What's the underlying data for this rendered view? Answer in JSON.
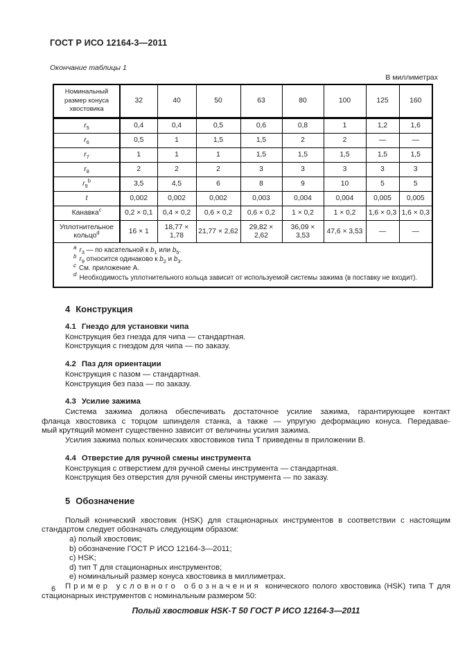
{
  "colors": {
    "text": "#1a1a1a",
    "table_border": "#000000",
    "page_bg": "#ffffff"
  },
  "header": {
    "doc_code": "ГОСТ Р ИСО 12164-3—2011",
    "table_caption": "Окончание таблицы 1",
    "units_note": "В миллиметрах"
  },
  "table": {
    "corner_label": "Номинальный размер конуса хвостовика",
    "size_columns": [
      "32",
      "40",
      "50",
      "63",
      "80",
      "100",
      "125",
      "160"
    ],
    "rows": [
      {
        "label": [
          {
            "t": "r",
            "i": true
          },
          {
            "t": "5",
            "sub": true
          }
        ],
        "values": [
          "0,4",
          "0,4",
          "0,5",
          "0,6",
          "0,8",
          "1",
          "1,2",
          "1,6"
        ]
      },
      {
        "label": [
          {
            "t": "r",
            "i": true
          },
          {
            "t": "6",
            "sub": true
          }
        ],
        "values": [
          "0,5",
          "1",
          "1,5",
          "1,5",
          "2",
          "2",
          "—",
          "—"
        ]
      },
      {
        "label": [
          {
            "t": "r",
            "i": true
          },
          {
            "t": "7",
            "sub": true
          }
        ],
        "values": [
          "1",
          "1",
          "1",
          "1,5",
          "1,5",
          "1,5",
          "1,5",
          "1,5"
        ]
      },
      {
        "label": [
          {
            "t": "r",
            "i": true
          },
          {
            "t": "8",
            "sub": true
          }
        ],
        "values": [
          "2",
          "2",
          "2",
          "3",
          "3",
          "3",
          "3",
          "3"
        ]
      },
      {
        "label": [
          {
            "t": "r",
            "i": true
          },
          {
            "t": "9",
            "sub": true
          },
          {
            "t": "b",
            "sup": true
          }
        ],
        "values": [
          "3,5",
          "4,5",
          "6",
          "8",
          "9",
          "10",
          "5",
          "5"
        ]
      },
      {
        "label": [
          {
            "t": "t",
            "i": true
          }
        ],
        "values": [
          "0,002",
          "0,002",
          "0,002",
          "0,003",
          "0,004",
          "0,004",
          "0,005",
          "0,005"
        ]
      },
      {
        "label": [
          {
            "t": "Канавка"
          },
          {
            "t": "c",
            "sup": true
          }
        ],
        "values": [
          "0,2 × 0,1",
          "0,4 × 0,2",
          "0,6 × 0,2",
          "0,6 × 0,2",
          "1 × 0,2",
          "1 × 0,2",
          "1,6 × 0,3",
          "1,6 × 0,3"
        ]
      },
      {
        "label": [
          {
            "t": "Уплотнительное кольцо"
          },
          {
            "t": "d",
            "sup": true
          }
        ],
        "values": [
          "16 × 1",
          "18,77 × 1,78",
          "21,77 × 2,62",
          "29,82 × 2,62",
          "36,09 × 3,53",
          "47,6 × 3,53",
          "—",
          "—"
        ]
      }
    ],
    "footnotes": [
      {
        "marker": "a",
        "segments": [
          {
            "t": "r",
            "i": true
          },
          {
            "t": "3",
            "sub": true
          },
          {
            "t": " — по касательной к "
          },
          {
            "t": "b",
            "i": true
          },
          {
            "t": "1",
            "sub": true
          },
          {
            "t": " или "
          },
          {
            "t": "b",
            "i": true
          },
          {
            "t": "5",
            "sub": true
          },
          {
            "t": "."
          }
        ]
      },
      {
        "marker": "b",
        "segments": [
          {
            "t": "r",
            "i": true
          },
          {
            "t": "9",
            "sub": true
          },
          {
            "t": " относится одинаково к "
          },
          {
            "t": "b",
            "i": true
          },
          {
            "t": "2",
            "sub": true
          },
          {
            "t": " и "
          },
          {
            "t": "b",
            "i": true
          },
          {
            "t": "3",
            "sub": true
          },
          {
            "t": "."
          }
        ]
      },
      {
        "marker": "c",
        "segments": [
          {
            "t": "См. приложение А."
          }
        ]
      },
      {
        "marker": "d",
        "segments": [
          {
            "t": "Необходимость уплотнительного кольца зависит от используемой системы зажима (в поставку не входит)."
          }
        ]
      }
    ]
  },
  "section4": {
    "number": "4",
    "title": "Конструкция",
    "sub1": {
      "number": "4.1",
      "title": "Гнездо для установки чипа",
      "p1": "Конструкция без гнезда для чипа — стандартная.",
      "p2": "Конструкция с гнездом для чипа — по заказу."
    },
    "sub2": {
      "number": "4.2",
      "title": "Паз для ориентации",
      "p1": "Конструкция с пазом — стандартная.",
      "p2": "Конструкция без паза — по заказу."
    },
    "sub3": {
      "number": "4.3",
      "title": "Усилие зажима",
      "p1_lines": [
        "Система зажима должна обеспечивать достаточное усилие зажима, гарантирующее контакт",
        "фланца хвостовика с торцом шпинделя станка, а также — упругую деформацию конуса. Передавае-",
        "мый крутящий момент существенно зависит от величины усилия зажима."
      ],
      "p2": "Усилия зажима полых конических хвостовиков типа Т приведены в приложении В."
    },
    "sub4": {
      "number": "4.4",
      "title": "Отверстие для ручной смены инструмента",
      "p1": "Конструкция с отверстием для ручной смены инструмента — стандартная.",
      "p2": "Конструкция без отверстия для ручной смены инструмента — по заказу."
    }
  },
  "section5": {
    "number": "5",
    "title": "Обозначение",
    "intro_lines": [
      "Полый конический хвостовик (HSK) для стационарных инструментов в соответствии с настоящим",
      "стандартом следует обозначать следующим образом:"
    ],
    "items": [
      "a) полый хвостовик;",
      "b) обозначение ГОСТ Р ИСО 12164-3—2011;",
      "c) HSK;",
      "d) тип Т для стационарных инструментов;",
      "e) номинальный размер конуса хвостовика в миллиметрах."
    ],
    "example_intro_spaced": "Пример условного обозначения",
    "example_intro_rest1": "конического полого хвостовика (HSK) типа Т для",
    "example_intro_rest2": "стационарных инструментов с номинальным размером 50:",
    "example_line": "Полый хвостовик HSK-T 50 ГОСТ Р ИСО 12164-3—2011"
  },
  "footer": {
    "page_number": "6"
  }
}
